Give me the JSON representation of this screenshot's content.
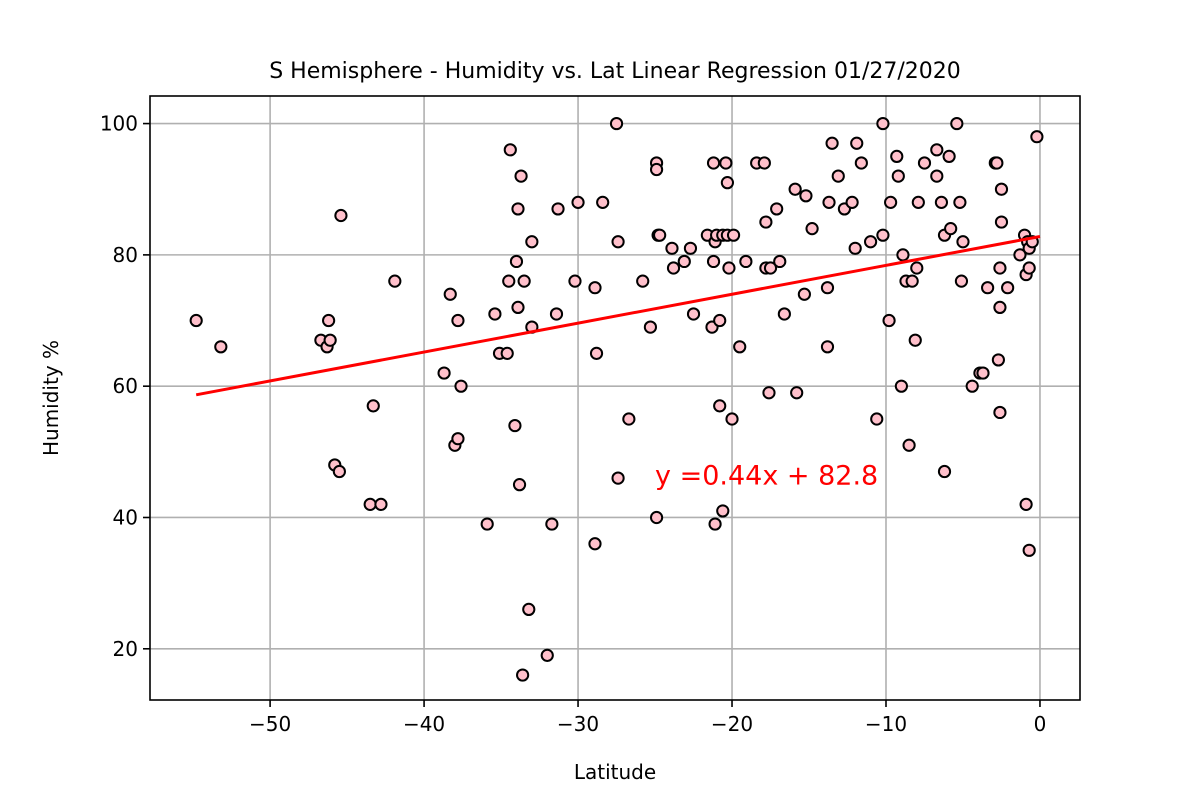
{
  "chart_data": {
    "type": "scatter",
    "title": "S Hemisphere - Humidity vs. Lat Linear Regression 01/27/2020",
    "xlabel": "Latitude",
    "ylabel": "Humidity %",
    "xlim": [
      -57.8,
      2.6
    ],
    "ylim": [
      12.2,
      104.2
    ],
    "xticks": [
      -50,
      -40,
      -30,
      -20,
      -10,
      0
    ],
    "xtick_labels": [
      "−50",
      "−40",
      "−30",
      "−20",
      "−10",
      "0"
    ],
    "yticks": [
      20,
      40,
      60,
      80,
      100
    ],
    "ytick_labels": [
      "20",
      "40",
      "60",
      "80",
      "100"
    ],
    "grid": true,
    "point_color": "#ffc0cb",
    "point_edge_color": "#000000",
    "line_color": "#ff0000",
    "regression": {
      "slope": 0.44,
      "intercept": 82.8,
      "x_range": [
        -54.8,
        0
      ],
      "label": "y =0.44x + 82.8",
      "label_position": [
        -25,
        45
      ]
    },
    "points": [
      [
        -54.8,
        70
      ],
      [
        -53.2,
        66
      ],
      [
        -46.7,
        67
      ],
      [
        -46.3,
        66
      ],
      [
        -46.2,
        70
      ],
      [
        -46.1,
        67
      ],
      [
        -45.8,
        48
      ],
      [
        -45.5,
        47
      ],
      [
        -45.4,
        86
      ],
      [
        -43.5,
        42
      ],
      [
        -43.3,
        57
      ],
      [
        -42.8,
        42
      ],
      [
        -41.9,
        76
      ],
      [
        -38.7,
        62
      ],
      [
        -38.3,
        74
      ],
      [
        -38.0,
        51
      ],
      [
        -37.8,
        70
      ],
      [
        -37.8,
        52
      ],
      [
        -37.6,
        60
      ],
      [
        -35.9,
        39
      ],
      [
        -35.4,
        71
      ],
      [
        -35.1,
        65
      ],
      [
        -34.6,
        65
      ],
      [
        -34.5,
        76
      ],
      [
        -34.4,
        96
      ],
      [
        -34.1,
        54
      ],
      [
        -34.0,
        79
      ],
      [
        -33.9,
        87
      ],
      [
        -33.9,
        72
      ],
      [
        -33.8,
        45
      ],
      [
        -33.7,
        92
      ],
      [
        -33.6,
        16
      ],
      [
        -33.5,
        76
      ],
      [
        -33.2,
        26
      ],
      [
        -33.0,
        82
      ],
      [
        -33.0,
        69
      ],
      [
        -32.0,
        19
      ],
      [
        -31.7,
        39
      ],
      [
        -31.4,
        71
      ],
      [
        -31.3,
        87
      ],
      [
        -30.2,
        76
      ],
      [
        -30.0,
        88
      ],
      [
        -28.9,
        36
      ],
      [
        -28.9,
        75
      ],
      [
        -28.8,
        65
      ],
      [
        -28.4,
        88
      ],
      [
        -27.5,
        100
      ],
      [
        -27.4,
        46
      ],
      [
        -27.4,
        82
      ],
      [
        -26.7,
        55
      ],
      [
        -25.8,
        76
      ],
      [
        -25.3,
        69
      ],
      [
        -24.9,
        40
      ],
      [
        -24.9,
        94
      ],
      [
        -24.9,
        93
      ],
      [
        -24.8,
        83
      ],
      [
        -24.7,
        83
      ],
      [
        -23.9,
        81
      ],
      [
        -23.8,
        78
      ],
      [
        -23.1,
        79
      ],
      [
        -22.7,
        81
      ],
      [
        -22.5,
        71
      ],
      [
        -21.6,
        83
      ],
      [
        -21.3,
        69
      ],
      [
        -21.2,
        94
      ],
      [
        -21.2,
        79
      ],
      [
        -21.1,
        82
      ],
      [
        -21.1,
        39
      ],
      [
        -21.0,
        83
      ],
      [
        -20.8,
        57
      ],
      [
        -20.8,
        70
      ],
      [
        -20.6,
        41
      ],
      [
        -20.6,
        83
      ],
      [
        -20.4,
        94
      ],
      [
        -20.3,
        83
      ],
      [
        -20.3,
        91
      ],
      [
        -20.2,
        78
      ],
      [
        -20.0,
        55
      ],
      [
        -19.9,
        83
      ],
      [
        -19.5,
        66
      ],
      [
        -19.1,
        79
      ],
      [
        -18.4,
        94
      ],
      [
        -17.9,
        94
      ],
      [
        -17.8,
        78
      ],
      [
        -17.8,
        85
      ],
      [
        -17.6,
        59
      ],
      [
        -17.5,
        78
      ],
      [
        -17.1,
        87
      ],
      [
        -16.9,
        79
      ],
      [
        -16.6,
        71
      ],
      [
        -15.9,
        90
      ],
      [
        -15.8,
        59
      ],
      [
        -15.3,
        74
      ],
      [
        -15.2,
        89
      ],
      [
        -14.8,
        84
      ],
      [
        -13.8,
        75
      ],
      [
        -13.8,
        66
      ],
      [
        -13.7,
        88
      ],
      [
        -13.5,
        97
      ],
      [
        -13.1,
        92
      ],
      [
        -12.7,
        87
      ],
      [
        -12.2,
        88
      ],
      [
        -12.0,
        81
      ],
      [
        -11.9,
        97
      ],
      [
        -11.6,
        94
      ],
      [
        -11.0,
        82
      ],
      [
        -10.6,
        55
      ],
      [
        -10.2,
        83
      ],
      [
        -10.2,
        100
      ],
      [
        -9.7,
        88
      ],
      [
        -9.8,
        70
      ],
      [
        -9.3,
        95
      ],
      [
        -9.2,
        92
      ],
      [
        -9.0,
        60
      ],
      [
        -8.9,
        80
      ],
      [
        -8.7,
        76
      ],
      [
        -8.5,
        51
      ],
      [
        -8.3,
        76
      ],
      [
        -8.1,
        67
      ],
      [
        -8.0,
        78
      ],
      [
        -7.9,
        88
      ],
      [
        -7.5,
        94
      ],
      [
        -6.7,
        92
      ],
      [
        -6.7,
        96
      ],
      [
        -6.4,
        88
      ],
      [
        -6.2,
        83
      ],
      [
        -6.2,
        47
      ],
      [
        -5.9,
        95
      ],
      [
        -5.8,
        84
      ],
      [
        -5.4,
        100
      ],
      [
        -5.2,
        88
      ],
      [
        -5.1,
        76
      ],
      [
        -5.0,
        82
      ],
      [
        -4.4,
        60
      ],
      [
        -3.9,
        62
      ],
      [
        -3.7,
        62
      ],
      [
        -3.4,
        75
      ],
      [
        -2.9,
        94
      ],
      [
        -2.8,
        94
      ],
      [
        -2.7,
        64
      ],
      [
        -2.6,
        78
      ],
      [
        -2.6,
        72
      ],
      [
        -2.6,
        56
      ],
      [
        -2.5,
        90
      ],
      [
        -2.5,
        85
      ],
      [
        -2.1,
        75
      ],
      [
        -1.3,
        80
      ],
      [
        -1.0,
        83
      ],
      [
        -0.9,
        42
      ],
      [
        -0.9,
        77
      ],
      [
        -0.8,
        82
      ],
      [
        -0.7,
        35
      ],
      [
        -0.7,
        81
      ],
      [
        -0.7,
        78
      ],
      [
        -0.5,
        82
      ],
      [
        -0.2,
        98
      ]
    ]
  }
}
